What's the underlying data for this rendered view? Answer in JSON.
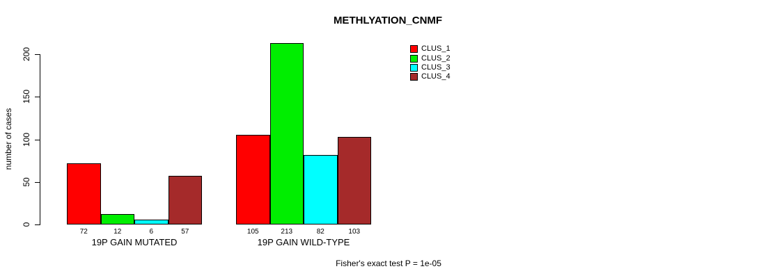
{
  "title": "METHLYATION_CNMF",
  "y_axis": {
    "label": "number of cases"
  },
  "footer": "Fisher's exact test P = 1e-05",
  "chart_data": {
    "type": "bar",
    "title": "METHLYATION_CNMF",
    "xlabel": "",
    "ylabel": "number of cases",
    "ylim": [
      0,
      200
    ],
    "yticks": [
      0,
      50,
      100,
      150,
      200
    ],
    "categories": [
      "19P GAIN MUTATED",
      "19P GAIN WILD-TYPE"
    ],
    "series": [
      {
        "name": "CLUS_1",
        "color": "#FF0000",
        "values": [
          72,
          105
        ]
      },
      {
        "name": "CLUS_2",
        "color": "#00EE00",
        "values": [
          12,
          213
        ]
      },
      {
        "name": "CLUS_3",
        "color": "#00FFFF",
        "values": [
          6,
          82
        ]
      },
      {
        "name": "CLUS_4",
        "color": "#A52A2A",
        "values": [
          57,
          103
        ]
      }
    ],
    "bar_value_labels": [
      [
        72,
        12,
        6,
        57
      ],
      [
        105,
        213,
        82,
        103
      ]
    ],
    "legend_position": "top-right",
    "grid": false,
    "annotation": "Fisher's exact test P = 1e-05"
  }
}
